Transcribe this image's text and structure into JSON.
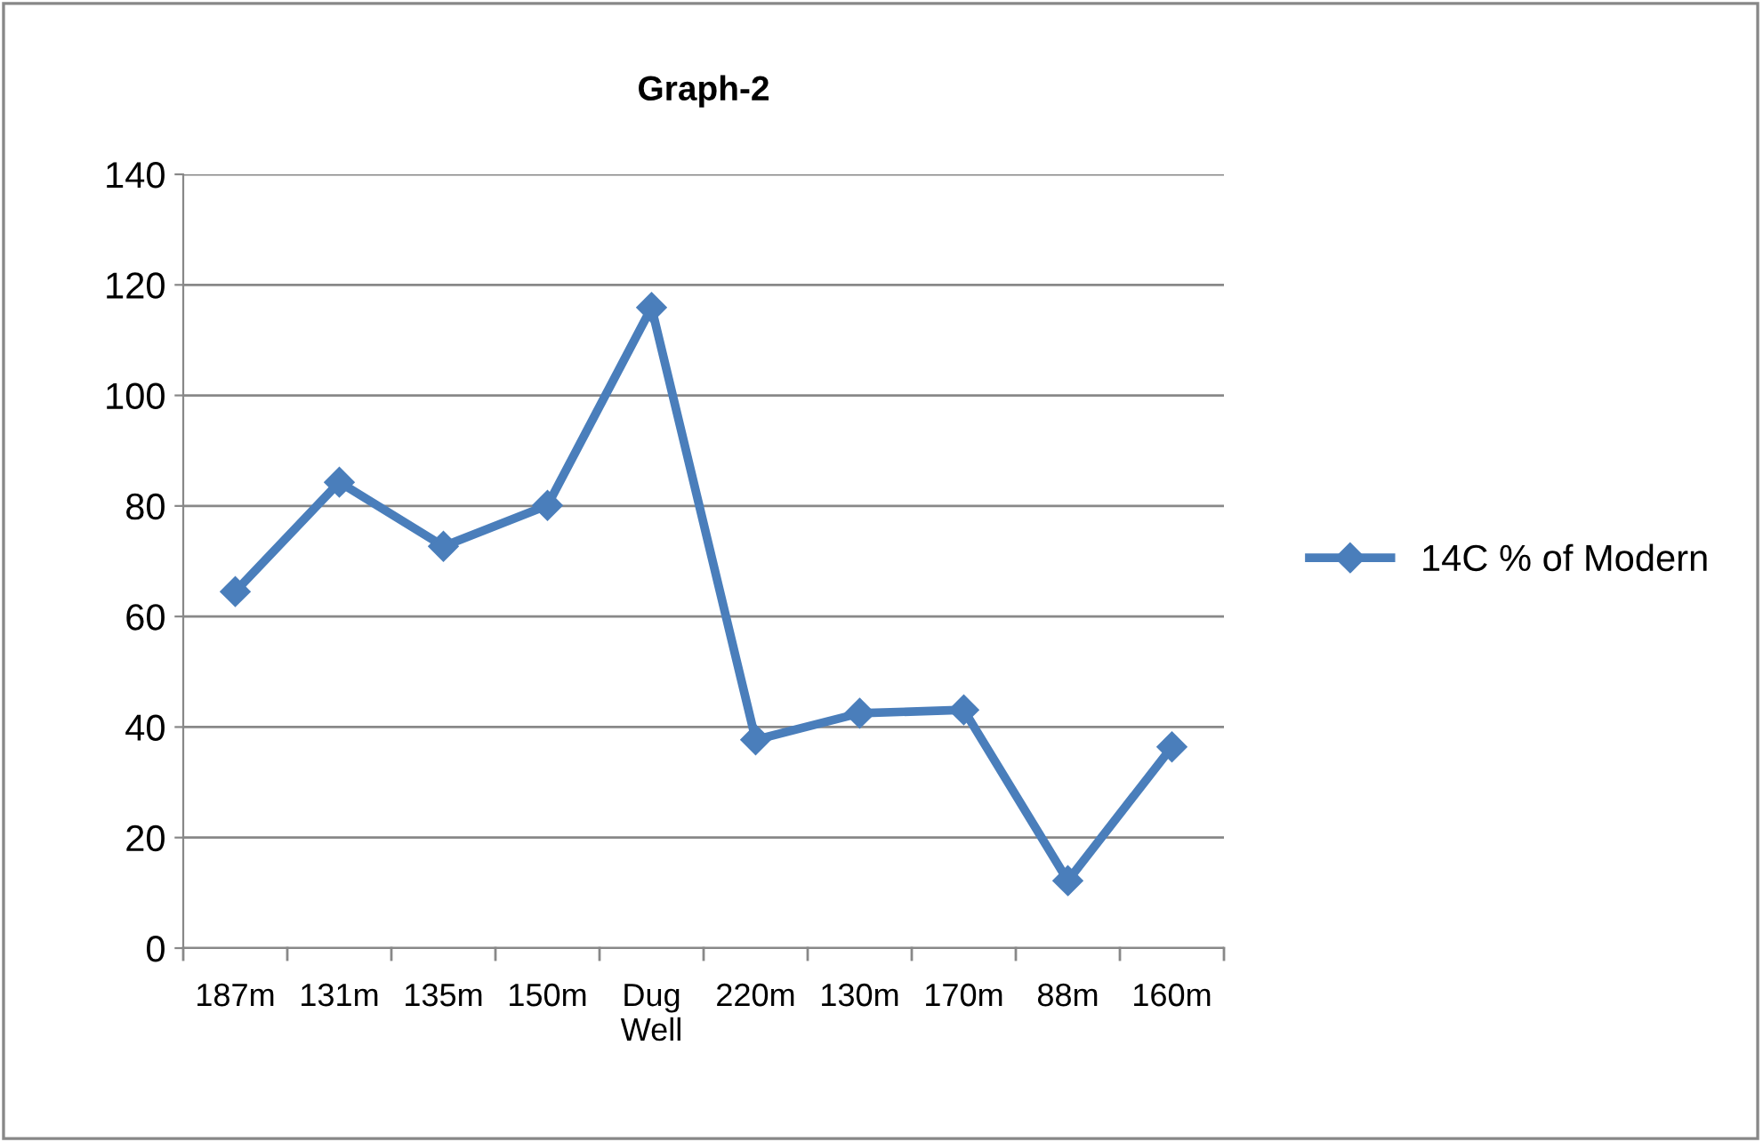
{
  "chart_data": {
    "type": "line",
    "title": "Graph-2",
    "categories": [
      "187m",
      "131m",
      "135m",
      "150m",
      "Dug Well",
      "220m",
      "130m",
      "170m",
      "88m",
      "160m"
    ],
    "series": [
      {
        "name": "14C % of Modern",
        "color": "#4a7ebb",
        "values": [
          64.5,
          84.3,
          72.7,
          80.1,
          115.9,
          37.7,
          42.5,
          43.1,
          12.2,
          36.4
        ]
      }
    ],
    "ylim": [
      0,
      140
    ],
    "yticks": [
      0,
      20,
      40,
      60,
      80,
      100,
      120,
      140
    ],
    "grid": "y",
    "legend": "right",
    "marker": "diamond",
    "line_style": "solid"
  }
}
